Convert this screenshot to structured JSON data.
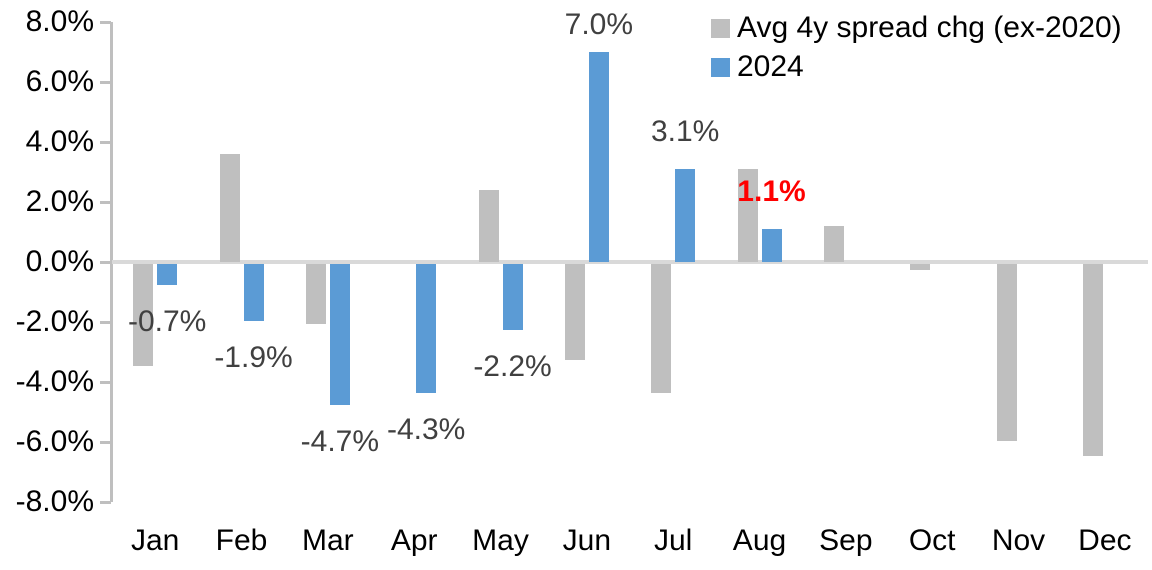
{
  "chart_data": {
    "type": "bar",
    "title": "",
    "xlabel": "",
    "ylabel": "",
    "categories": [
      "Jan",
      "Feb",
      "Mar",
      "Apr",
      "May",
      "Jun",
      "Jul",
      "Aug",
      "Sep",
      "Oct",
      "Nov",
      "Dec"
    ],
    "series": [
      {
        "name": "Avg 4y spread chg (ex-2020)",
        "color": "#bfbfbf",
        "values": [
          -3.4,
          3.6,
          -2.0,
          0.0,
          2.4,
          -3.2,
          -4.3,
          3.1,
          1.2,
          -0.2,
          -5.9,
          -6.4
        ]
      },
      {
        "name": "2024",
        "color": "#5b9bd5",
        "values": [
          -0.7,
          -1.9,
          -4.7,
          -4.3,
          -2.2,
          7.0,
          3.1,
          1.1,
          null,
          null,
          null,
          null
        ],
        "labels": [
          {
            "text": "-0.7%",
            "color": "#404040",
            "bold": false
          },
          {
            "text": "-1.9%",
            "color": "#404040",
            "bold": false
          },
          {
            "text": "-4.7%",
            "color": "#404040",
            "bold": false
          },
          {
            "text": "-4.3%",
            "color": "#404040",
            "bold": false
          },
          {
            "text": "-2.2%",
            "color": "#404040",
            "bold": false
          },
          {
            "text": "7.0%",
            "color": "#404040",
            "bold": false
          },
          {
            "text": "3.1%",
            "color": "#404040",
            "bold": false
          },
          {
            "text": "1.1%",
            "color": "#ff0000",
            "bold": true
          },
          null,
          null,
          null,
          null
        ]
      }
    ],
    "y_axis": {
      "min": -8,
      "max": 8,
      "step": 2,
      "unit": "%",
      "tick_labels": [
        "8.0%",
        "6.0%",
        "4.0%",
        "2.0%",
        "0.0%",
        "-2.0%",
        "-4.0%",
        "-6.0%",
        "-8.0%"
      ]
    },
    "legend": {
      "position": "top-right"
    },
    "grid": false,
    "accent_colors": {
      "gray_series": "#bfbfbf",
      "blue_series": "#5b9bd5",
      "axis": "#bfbfbf",
      "zero_line": "#d9d9d9",
      "label_default": "#404040",
      "label_highlight": "#ff0000"
    }
  }
}
